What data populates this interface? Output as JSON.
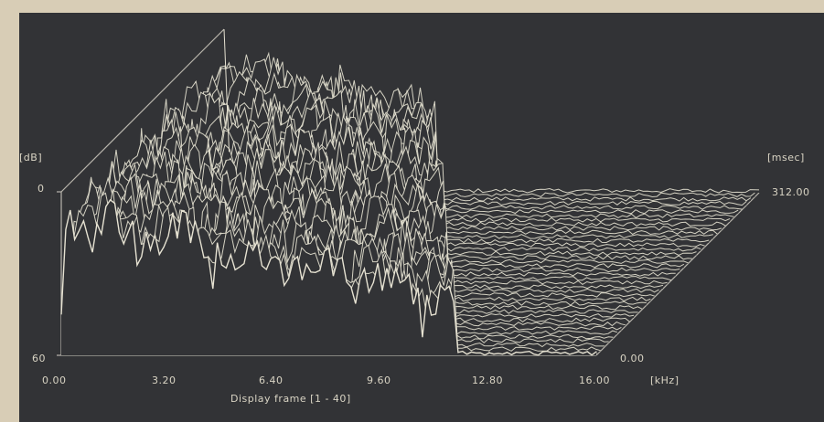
{
  "chart_data": {
    "type": "waterfall-3d",
    "title": "",
    "xlabel": "[kHz]",
    "ylabel": "[dB]",
    "zlabel": "[msec]",
    "footer": "Display frame [1 - 40]",
    "x_ticks": [
      "0.00",
      "3.20",
      "6.40",
      "9.60",
      "12.80",
      "16.00"
    ],
    "xlim": [
      0,
      16
    ],
    "y_ticks": [
      "0",
      "60"
    ],
    "ylim": [
      0,
      60
    ],
    "z_ticks": [
      "0.00",
      "312.00"
    ],
    "zlim": [
      0,
      312
    ],
    "frames": 40,
    "colors": {
      "trace": "#e6e2d2",
      "grid": "#b9b6ad",
      "background": "#323336",
      "page": "#d8cdb6"
    }
  }
}
